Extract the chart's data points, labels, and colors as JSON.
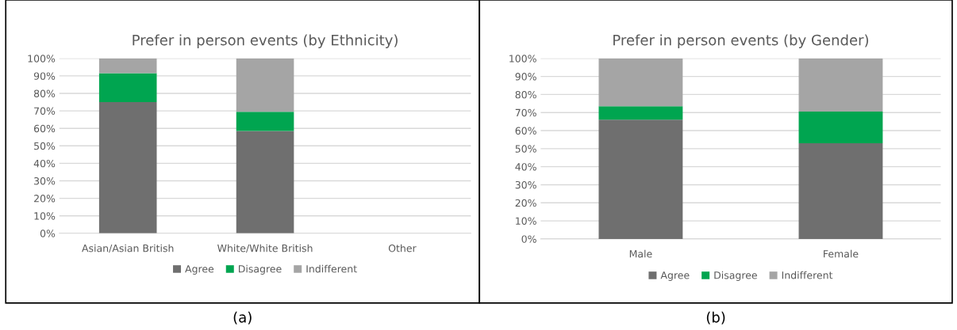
{
  "chart_data": [
    {
      "type": "bar",
      "title": "Prefer in person events (by Ethnicity)",
      "categories": [
        "Asian/Asian British",
        "White/White British",
        "Other"
      ],
      "stacked": true,
      "series": [
        {
          "name": "Agree",
          "color": "#6f6f6f",
          "values": [
            75,
            58.5,
            null
          ]
        },
        {
          "name": "Disagree",
          "color": "#00a550",
          "values": [
            16.5,
            11,
            null
          ]
        },
        {
          "name": "Indifferent",
          "color": "#a5a5a5",
          "values": [
            8.5,
            30.5,
            null
          ]
        }
      ],
      "ylim": [
        0,
        100
      ],
      "yticks": [
        {
          "value": 0,
          "label": "0%"
        },
        {
          "value": 10,
          "label": "10%"
        },
        {
          "value": 20,
          "label": "20%"
        },
        {
          "value": 30,
          "label": "30%"
        },
        {
          "value": 40,
          "label": "40%"
        },
        {
          "value": 50,
          "label": "50%"
        },
        {
          "value": 60,
          "label": "60%"
        },
        {
          "value": 70,
          "label": "70%"
        },
        {
          "value": 80,
          "label": "80%"
        },
        {
          "value": 90,
          "label": "90%"
        },
        {
          "value": 100,
          "label": "100%"
        }
      ],
      "grid": "y",
      "legend": "bottom",
      "annotations": [
        "(a)"
      ]
    },
    {
      "type": "bar",
      "title": "Prefer in person events (by Gender)",
      "categories": [
        "Male",
        "Female"
      ],
      "stacked": true,
      "series": [
        {
          "name": "Agree",
          "color": "#6f6f6f",
          "values": [
            66,
            53
          ]
        },
        {
          "name": "Disagree",
          "color": "#00a550",
          "values": [
            7.5,
            17.5
          ]
        },
        {
          "name": "Indifferent",
          "color": "#a5a5a5",
          "values": [
            26.5,
            29.5
          ]
        }
      ],
      "ylim": [
        0,
        100
      ],
      "yticks": [
        {
          "value": 0,
          "label": "0%"
        },
        {
          "value": 10,
          "label": "10%"
        },
        {
          "value": 20,
          "label": "20%"
        },
        {
          "value": 30,
          "label": "30%"
        },
        {
          "value": 40,
          "label": "40%"
        },
        {
          "value": 50,
          "label": "50%"
        },
        {
          "value": 60,
          "label": "60%"
        },
        {
          "value": 70,
          "label": "70%"
        },
        {
          "value": 80,
          "label": "80%"
        },
        {
          "value": 90,
          "label": "90%"
        },
        {
          "value": 100,
          "label": "100%"
        }
      ],
      "grid": "y",
      "legend": "bottom",
      "annotations": [
        "(b)"
      ]
    }
  ]
}
